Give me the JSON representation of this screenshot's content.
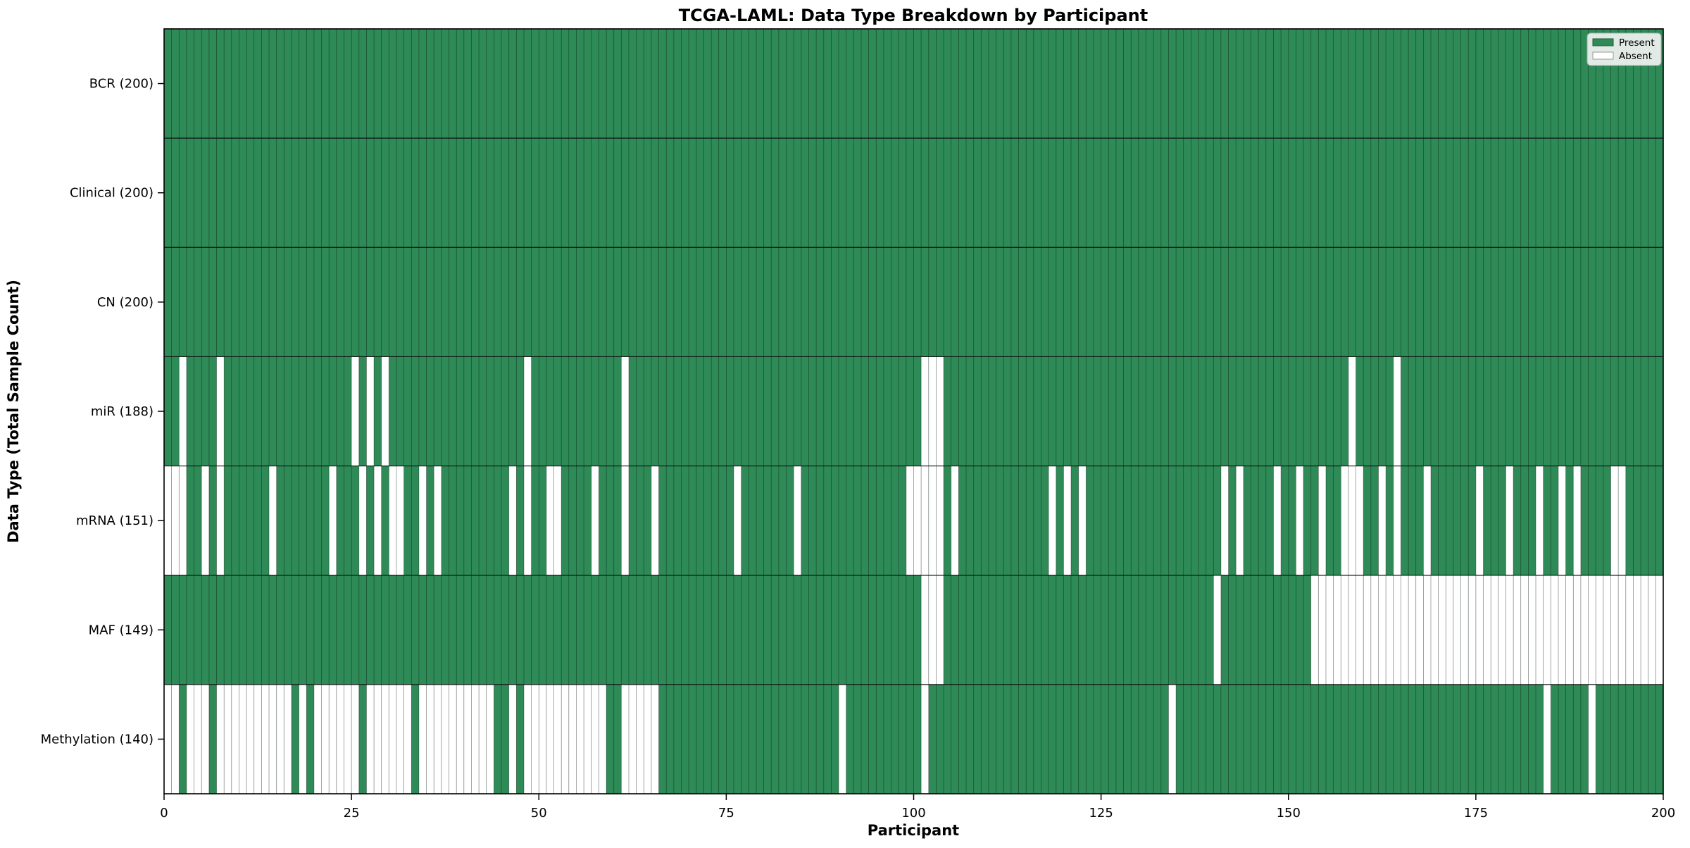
{
  "figure": {
    "title": "TCGA-LAML: Data Type Breakdown by Participant",
    "xlabel": "Participant",
    "ylabel": "Data Type (Total Sample Count)"
  },
  "chart_data": {
    "type": "heatmap",
    "title": "TCGA-LAML: Data Type Breakdown by Participant",
    "xlabel": "Participant",
    "ylabel": "Data Type (Total Sample Count)",
    "xlim": [
      0,
      200
    ],
    "n_participants": 200,
    "x_ticks": [
      0,
      25,
      50,
      75,
      100,
      125,
      150,
      175,
      200
    ],
    "grid": "per-cell vertical separators",
    "colors": {
      "present": "#2e8b57",
      "absent": "#ffffff"
    },
    "legend": {
      "position": "upper right",
      "items": [
        {
          "label": "Present",
          "color": "#2e8b57"
        },
        {
          "label": "Absent",
          "color": "#ffffff"
        }
      ]
    },
    "rows": [
      {
        "name": "BCR",
        "label": "BCR (200)",
        "present_count": 200,
        "absent_participants": []
      },
      {
        "name": "Clinical",
        "label": "Clinical (200)",
        "present_count": 200,
        "absent_participants": []
      },
      {
        "name": "CN",
        "label": "CN (200)",
        "present_count": 200,
        "absent_participants": []
      },
      {
        "name": "miR",
        "label": "miR (188)",
        "present_count": 188,
        "absent_participants": [
          2,
          7,
          25,
          27,
          29,
          48,
          61,
          101,
          102,
          103,
          158,
          164
        ]
      },
      {
        "name": "mRNA",
        "label": "mRNA (151)",
        "present_count": 151,
        "absent_participants": [
          0,
          1,
          2,
          5,
          7,
          14,
          22,
          26,
          28,
          30,
          31,
          34,
          36,
          46,
          48,
          51,
          52,
          57,
          61,
          65,
          76,
          84,
          99,
          100,
          101,
          102,
          103,
          105,
          118,
          120,
          122,
          141,
          143,
          148,
          151,
          154,
          157,
          158,
          159,
          162,
          164,
          168,
          175,
          179,
          183,
          186,
          188,
          193,
          194
        ]
      },
      {
        "name": "MAF",
        "label": "MAF (149)",
        "present_count": 149,
        "absent_participants": [
          101,
          102,
          103,
          140,
          153,
          154,
          155,
          156,
          157,
          158,
          159,
          160,
          161,
          162,
          163,
          164,
          165,
          166,
          167,
          168,
          169,
          170,
          171,
          172,
          173,
          174,
          175,
          176,
          177,
          178,
          179,
          180,
          181,
          182,
          183,
          184,
          185,
          186,
          187,
          188,
          189,
          190,
          191,
          192,
          193,
          194,
          195,
          196,
          197,
          198,
          199
        ]
      },
      {
        "name": "Methylation",
        "label": "Methylation (140)",
        "present_count": 140,
        "absent_participants": [
          0,
          1,
          3,
          4,
          5,
          7,
          8,
          9,
          10,
          11,
          12,
          13,
          14,
          15,
          16,
          18,
          20,
          21,
          22,
          23,
          24,
          25,
          27,
          28,
          29,
          30,
          31,
          32,
          34,
          35,
          36,
          37,
          38,
          39,
          40,
          41,
          42,
          43,
          46,
          48,
          49,
          50,
          51,
          52,
          53,
          54,
          55,
          56,
          57,
          58,
          61,
          62,
          63,
          64,
          65,
          90,
          101,
          134,
          184,
          190
        ]
      }
    ]
  }
}
